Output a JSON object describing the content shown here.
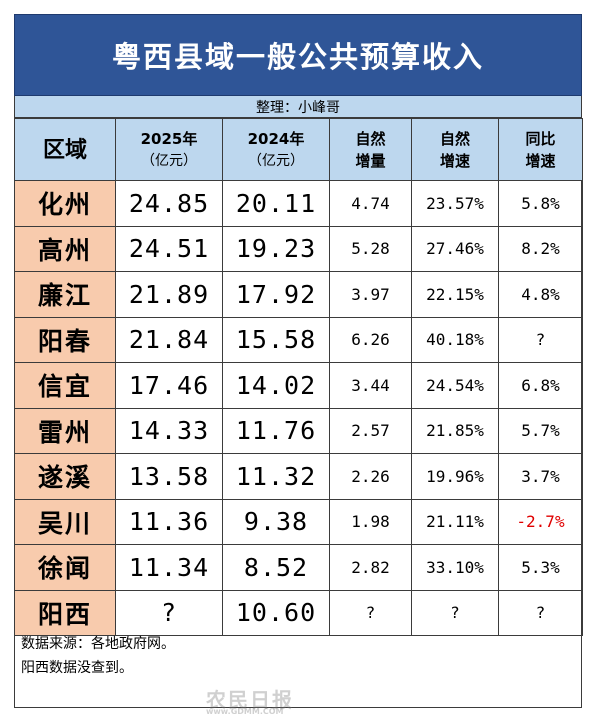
{
  "title": "粤西县域一般公共预算收入",
  "subtitle": "整理：小峰哥",
  "headers": {
    "region": "区域",
    "y2025": "2025年",
    "y2025_unit": "（亿元）",
    "y2024": "2024年",
    "y2024_unit": "（亿元）",
    "nat_inc_1": "自然",
    "nat_inc_2": "增量",
    "nat_rate_1": "自然",
    "nat_rate_2": "增速",
    "yoy_1": "同比",
    "yoy_2": "增速"
  },
  "rows": [
    {
      "region": "化州",
      "y2025": "24.85",
      "y2024": "20.11",
      "inc": "4.74",
      "rate": "23.57%",
      "yoy": "5.8%"
    },
    {
      "region": "高州",
      "y2025": "24.51",
      "y2024": "19.23",
      "inc": "5.28",
      "rate": "27.46%",
      "yoy": "8.2%"
    },
    {
      "region": "廉江",
      "y2025": "21.89",
      "y2024": "17.92",
      "inc": "3.97",
      "rate": "22.15%",
      "yoy": "4.8%"
    },
    {
      "region": "阳春",
      "y2025": "21.84",
      "y2024": "15.58",
      "inc": "6.26",
      "rate": "40.18%",
      "yoy": "?"
    },
    {
      "region": "信宜",
      "y2025": "17.46",
      "y2024": "14.02",
      "inc": "3.44",
      "rate": "24.54%",
      "yoy": "6.8%"
    },
    {
      "region": "雷州",
      "y2025": "14.33",
      "y2024": "11.76",
      "inc": "2.57",
      "rate": "21.85%",
      "yoy": "5.7%"
    },
    {
      "region": "遂溪",
      "y2025": "13.58",
      "y2024": "11.32",
      "inc": "2.26",
      "rate": "19.96%",
      "yoy": "3.7%"
    },
    {
      "region": "吴川",
      "y2025": "11.36",
      "y2024": "9.38",
      "inc": "1.98",
      "rate": "21.11%",
      "yoy": "-2.7%"
    },
    {
      "region": "徐闻",
      "y2025": "11.34",
      "y2024": "8.52",
      "inc": "2.82",
      "rate": "33.10%",
      "yoy": "5.3%"
    },
    {
      "region": "阳西",
      "y2025": "?",
      "y2024": "10.60",
      "inc": "?",
      "rate": "?",
      "yoy": "?"
    }
  ],
  "negative_color": "#e00000",
  "notes": [
    "数据来源：各地政府网。",
    "阳西数据没查到。"
  ],
  "watermark": "农民日报",
  "watermark_url": "www.GDMM.COM"
}
